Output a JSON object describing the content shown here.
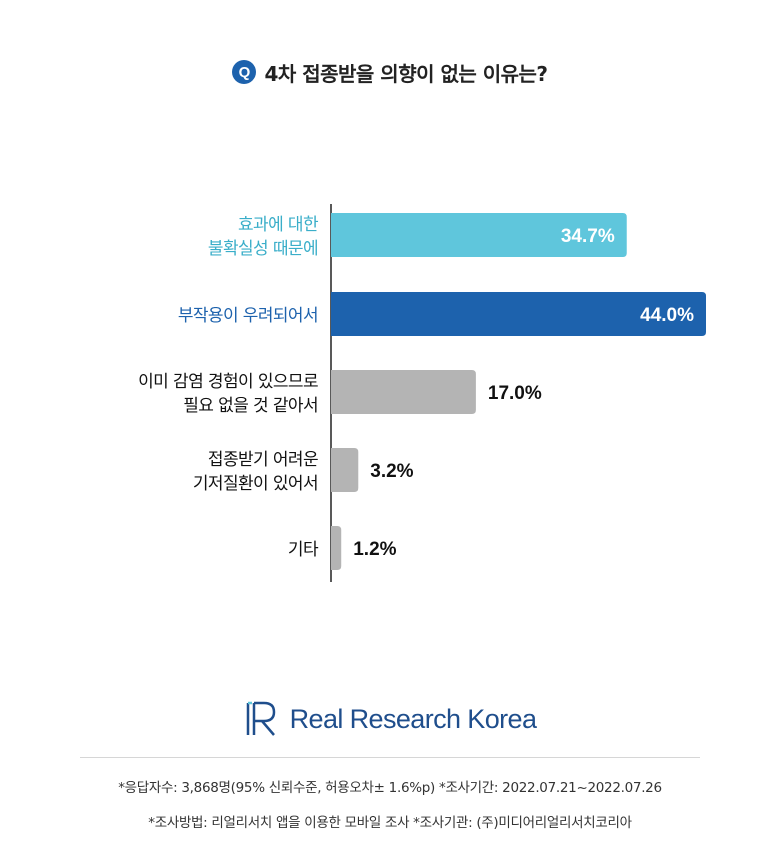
{
  "title": {
    "badge": "Q",
    "text": "4차 접종받을 의향이 없는 이유는?"
  },
  "chart_data": {
    "type": "bar",
    "orientation": "horizontal",
    "categories": [
      [
        "효과에 대한",
        "불확실성 때문에"
      ],
      [
        "부작용이 우려되어서"
      ],
      [
        "이미 감염 경험이 있으므로",
        "필요 없을 것 같아서"
      ],
      [
        "접종받기 어려운",
        "기저질환이 있어서"
      ],
      [
        "기타"
      ]
    ],
    "values": [
      34.7,
      44.0,
      17.0,
      3.2,
      1.2
    ],
    "value_labels": [
      "34.7%",
      "44.0%",
      "17.0%",
      "3.2%",
      "1.2%"
    ],
    "unit": "%",
    "colors": [
      "#5fc6dc",
      "#1d62ad",
      "#b4b4b4",
      "#b4b4b4",
      "#b4b4b4"
    ],
    "label_colors": [
      "#3aaec9",
      "#1d62ad",
      "#111111",
      "#111111",
      "#111111"
    ],
    "xlim": [
      0,
      44.0
    ],
    "grid": false,
    "legend": "none"
  },
  "logo": {
    "text": "Real Research Korea",
    "mark": "R"
  },
  "footnotes": {
    "line1": "*응답자수: 3,868명(95% 신뢰수준, 허용오차± 1.6%p)  *조사기간: 2022.07.21~2022.07.26",
    "line2": "*조사방법: 리얼리서치 앱을 이용한 모바일 조사  *조사기관: (주)미디어리얼리서치코리아"
  }
}
